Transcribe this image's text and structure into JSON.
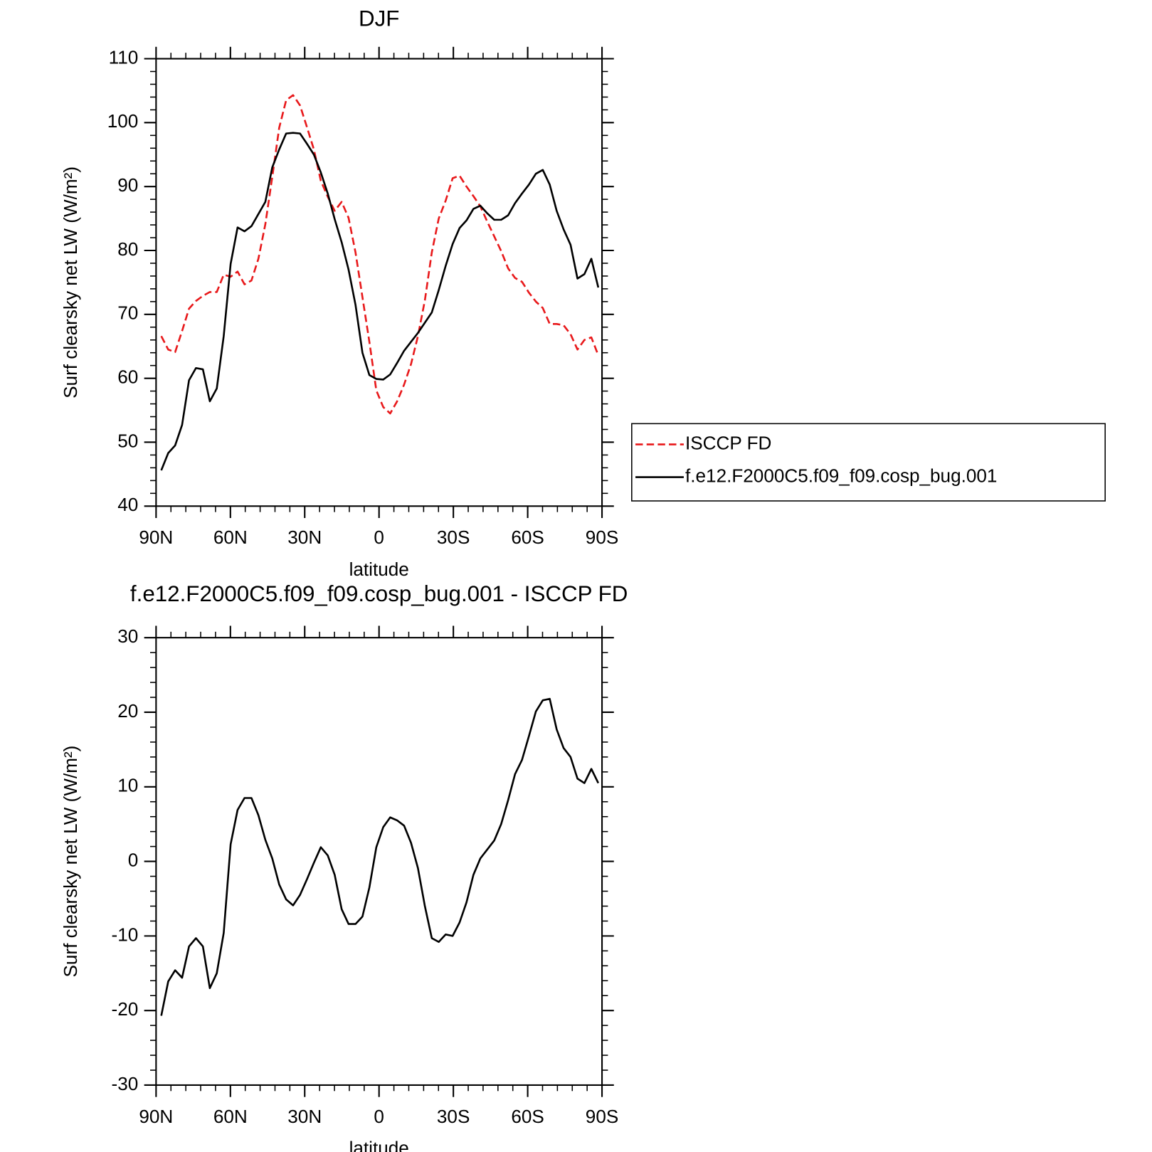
{
  "chart_data": [
    {
      "type": "line",
      "title": "DJF",
      "xlabel": "latitude",
      "ylabel": "Surf clearsky net LW (W/m²)",
      "x": [
        87.9,
        85.1,
        82.3,
        79.5,
        76.7,
        73.9,
        71.1,
        68.3,
        65.5,
        62.7,
        59.9,
        57.1,
        54.3,
        51.5,
        48.7,
        45.9,
        43.1,
        40.3,
        37.5,
        34.7,
        31.9,
        29.1,
        26.3,
        23.5,
        20.7,
        17.9,
        15.1,
        12.3,
        9.5,
        6.7,
        3.9,
        1.1,
        -1.7,
        -4.5,
        -7.3,
        -10.1,
        -12.9,
        -15.7,
        -18.5,
        -21.3,
        -24.1,
        -26.9,
        -29.7,
        -32.5,
        -35.3,
        -38.1,
        -40.9,
        -43.7,
        -46.5,
        -49.3,
        -52.1,
        -54.9,
        -57.7,
        -60.5,
        -63.3,
        -66.1,
        -68.9,
        -71.7,
        -74.5,
        -77.3,
        -80.1,
        -82.9,
        -85.7,
        -88.5
      ],
      "series": [
        {
          "name": "ISCCP FD",
          "color": "#e8191b",
          "linestyle": "dashed",
          "values": [
            66.6,
            64.5,
            64.1,
            67.4,
            70.9,
            72.1,
            72.9,
            73.5,
            73.5,
            76.2,
            75.9,
            76.7,
            74.7,
            75.3,
            78.7,
            84.1,
            91.5,
            99.2,
            103.5,
            104.3,
            102.7,
            99.3,
            95.8,
            90.9,
            88.4,
            86.2,
            87.6,
            85.1,
            79.7,
            72.7,
            65.7,
            58.1,
            55.5,
            54.5,
            56.4,
            59.0,
            62.2,
            66.6,
            72.2,
            79.7,
            85.0,
            87.8,
            91.3,
            91.7,
            90.0,
            88.5,
            86.9,
            84.5,
            82.2,
            79.9,
            77.2,
            75.7,
            75.1,
            73.4,
            72.0,
            71.0,
            68.5,
            68.5,
            68.3,
            66.9,
            64.5,
            66.0,
            66.4,
            63.6
          ]
        },
        {
          "name": "f.e12.F2000C5.f09_f09.cosp_bug.001",
          "color": "#000000",
          "linestyle": "solid",
          "values": [
            45.6,
            48.3,
            49.5,
            52.7,
            59.7,
            61.6,
            61.4,
            56.4,
            58.4,
            66.6,
            77.9,
            83.6,
            83.0,
            83.8,
            85.7,
            87.6,
            93.0,
            95.8,
            98.3,
            98.4,
            98.3,
            96.7,
            95.0,
            92.2,
            88.9,
            84.9,
            81.3,
            77.0,
            71.5,
            64.0,
            60.5,
            59.9,
            59.8,
            60.6,
            62.4,
            64.3,
            65.7,
            67.1,
            68.7,
            70.3,
            73.8,
            77.6,
            81.0,
            83.5,
            84.7,
            86.5,
            87.0,
            85.8,
            84.8,
            84.8,
            85.5,
            87.4,
            88.9,
            90.3,
            92.0,
            92.6,
            90.3,
            86.2,
            83.3,
            80.9,
            75.6,
            76.3,
            78.7,
            74.2
          ]
        }
      ],
      "xlim": [
        90,
        -90
      ],
      "xticks": [
        {
          "value": 90,
          "label": "90N"
        },
        {
          "value": 60,
          "label": "60N"
        },
        {
          "value": 30,
          "label": "30N"
        },
        0,
        {
          "value": -30,
          "label": "30S"
        },
        {
          "value": -60,
          "label": "60S"
        },
        {
          "value": -90,
          "label": "90S"
        }
      ],
      "ylim": [
        40,
        110
      ],
      "yticks": [
        40,
        50,
        60,
        70,
        80,
        90,
        100,
        110
      ],
      "legend": "outside-right"
    },
    {
      "type": "line",
      "title": "f.e12.F2000C5.f09_f09.cosp_bug.001 - ISCCP FD",
      "xlabel": "latitude",
      "ylabel": "Surf clearsky net LW (W/m²)",
      "x": [
        87.9,
        85.1,
        82.3,
        79.5,
        76.7,
        73.9,
        71.1,
        68.3,
        65.5,
        62.7,
        59.9,
        57.1,
        54.3,
        51.5,
        48.7,
        45.9,
        43.1,
        40.3,
        37.5,
        34.7,
        31.9,
        29.1,
        26.3,
        23.5,
        20.7,
        17.9,
        15.1,
        12.3,
        9.5,
        6.7,
        3.9,
        1.1,
        -1.7,
        -4.5,
        -7.3,
        -10.1,
        -12.9,
        -15.7,
        -18.5,
        -21.3,
        -24.1,
        -26.9,
        -29.7,
        -32.5,
        -35.3,
        -38.1,
        -40.9,
        -43.7,
        -46.5,
        -49.3,
        -52.1,
        -54.9,
        -57.7,
        -60.5,
        -63.3,
        -66.1,
        -68.9,
        -71.7,
        -74.5,
        -77.3,
        -80.1,
        -82.9,
        -85.7,
        -88.5
      ],
      "series": [
        {
          "color": "#000000",
          "linestyle": "solid",
          "values": [
            -20.7,
            -16.1,
            -14.6,
            -15.6,
            -11.4,
            -10.3,
            -11.4,
            -17.0,
            -15.0,
            -9.6,
            2.3,
            6.9,
            8.5,
            8.5,
            6.2,
            2.9,
            0.4,
            -3.1,
            -5.1,
            -5.9,
            -4.5,
            -2.4,
            -0.2,
            1.9,
            0.8,
            -1.8,
            -6.4,
            -8.4,
            -8.4,
            -7.4,
            -3.5,
            1.9,
            4.6,
            5.9,
            5.5,
            4.8,
            2.5,
            -0.9,
            -6.0,
            -10.3,
            -10.8,
            -9.8,
            -10.0,
            -8.2,
            -5.5,
            -1.8,
            0.4,
            1.6,
            2.8,
            5.0,
            8.2,
            11.7,
            13.6,
            16.8,
            20.1,
            21.6,
            21.8,
            17.7,
            15.2,
            14.0,
            11.1,
            10.5,
            12.4,
            10.5
          ]
        }
      ],
      "xlim": [
        90,
        -90
      ],
      "xticks": [
        {
          "value": 90,
          "label": "90N"
        },
        {
          "value": 60,
          "label": "60N"
        },
        {
          "value": 30,
          "label": "30N"
        },
        0,
        {
          "value": -30,
          "label": "30S"
        },
        {
          "value": -60,
          "label": "60S"
        },
        {
          "value": -90,
          "label": "90S"
        }
      ],
      "ylim": [
        -30,
        30
      ],
      "yticks": [
        -30,
        -20,
        -10,
        0,
        10,
        20,
        30
      ]
    }
  ]
}
